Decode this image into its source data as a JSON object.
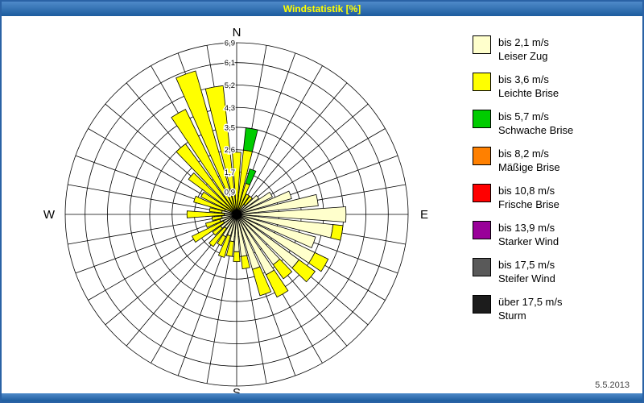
{
  "window": {
    "title": "Windstatistik [%]"
  },
  "footer": {
    "date": "5.5.2013"
  },
  "legend": {
    "items": [
      {
        "color": "#FFFFCC",
        "label_line1": "bis 2,1 m/s",
        "label_line2": "Leiser Zug"
      },
      {
        "color": "#FFFF00",
        "label_line1": "bis 3,6 m/s",
        "label_line2": "Leichte Brise"
      },
      {
        "color": "#00CC00",
        "label_line1": "bis 5,7 m/s",
        "label_line2": "Schwache Brise"
      },
      {
        "color": "#FF8000",
        "label_line1": "bis 8,2 m/s",
        "label_line2": "Mäßige Brise"
      },
      {
        "color": "#FF0000",
        "label_line1": "bis 10,8 m/s",
        "label_line2": "Frische Brise"
      },
      {
        "color": "#990099",
        "label_line1": "bis 13,9 m/s",
        "label_line2": "Starker Wind"
      },
      {
        "color": "#595959",
        "label_line1": "bis 17,5 m/s",
        "label_line2": "Steifer Wind"
      },
      {
        "color": "#1C1C1C",
        "label_line1": "über 17,5 m/s",
        "label_line2": "Sturm"
      }
    ]
  },
  "chart_data": {
    "type": "windrose-stacked-polar-bar",
    "title": "Windstatistik [%]",
    "unit": "%",
    "compass_labels": {
      "n": "N",
      "e": "E",
      "s": "S",
      "w": "W"
    },
    "ring_values": [
      0.9,
      1.7,
      2.6,
      3.5,
      4.3,
      5.2,
      6.1,
      6.9
    ],
    "ring_labels": [
      "0,9",
      "1,7",
      "2,6",
      "3,5",
      "4,3",
      "5,2",
      "6,1",
      "6,9"
    ],
    "max_value": 6.9,
    "sector_step_deg": 10,
    "note": "segment class index refers to legend.items order (0=Leiser Zug cream, 1=Leichte Brise yellow, 2=Schwache Brise green); values estimated in % from rings",
    "sectors": [
      {
        "deg": 0,
        "segments": [
          {
            "class": 1,
            "value": 2.5
          }
        ]
      },
      {
        "deg": 10,
        "segments": [
          {
            "class": 1,
            "value": 2.6
          },
          {
            "class": 2,
            "value": 0.9
          }
        ]
      },
      {
        "deg": 20,
        "segments": [
          {
            "class": 1,
            "value": 1.3
          },
          {
            "class": 2,
            "value": 0.6
          }
        ]
      },
      {
        "deg": 30,
        "segments": [
          {
            "class": 1,
            "value": 0.9
          }
        ]
      },
      {
        "deg": 40,
        "segments": [
          {
            "class": 0,
            "value": 0.5
          },
          {
            "class": 1,
            "value": 0.4
          }
        ]
      },
      {
        "deg": 50,
        "segments": [
          {
            "class": 0,
            "value": 1.1
          }
        ]
      },
      {
        "deg": 60,
        "segments": [
          {
            "class": 0,
            "value": 1.6
          }
        ]
      },
      {
        "deg": 70,
        "segments": [
          {
            "class": 0,
            "value": 2.3
          }
        ]
      },
      {
        "deg": 80,
        "segments": [
          {
            "class": 0,
            "value": 3.3
          }
        ]
      },
      {
        "deg": 90,
        "segments": [
          {
            "class": 0,
            "value": 4.4
          }
        ]
      },
      {
        "deg": 100,
        "segments": [
          {
            "class": 0,
            "value": 3.9
          },
          {
            "class": 1,
            "value": 0.4
          }
        ]
      },
      {
        "deg": 110,
        "segments": [
          {
            "class": 0,
            "value": 3.3
          }
        ]
      },
      {
        "deg": 120,
        "segments": [
          {
            "class": 0,
            "value": 3.5
          },
          {
            "class": 1,
            "value": 0.6
          }
        ]
      },
      {
        "deg": 130,
        "segments": [
          {
            "class": 0,
            "value": 3.1
          },
          {
            "class": 1,
            "value": 0.8
          }
        ]
      },
      {
        "deg": 140,
        "segments": [
          {
            "class": 0,
            "value": 2.5
          },
          {
            "class": 1,
            "value": 0.7
          }
        ]
      },
      {
        "deg": 150,
        "segments": [
          {
            "class": 0,
            "value": 2.7
          },
          {
            "class": 1,
            "value": 1.0
          }
        ]
      },
      {
        "deg": 160,
        "segments": [
          {
            "class": 0,
            "value": 2.3
          },
          {
            "class": 1,
            "value": 1.1
          }
        ]
      },
      {
        "deg": 170,
        "segments": [
          {
            "class": 0,
            "value": 1.7
          },
          {
            "class": 1,
            "value": 0.5
          }
        ]
      },
      {
        "deg": 180,
        "segments": [
          {
            "class": 0,
            "value": 1.5
          },
          {
            "class": 1,
            "value": 0.4
          }
        ]
      },
      {
        "deg": 190,
        "segments": [
          {
            "class": 0,
            "value": 1.1
          },
          {
            "class": 1,
            "value": 0.6
          }
        ]
      },
      {
        "deg": 200,
        "segments": [
          {
            "class": 0,
            "value": 0.9
          },
          {
            "class": 1,
            "value": 0.9
          }
        ]
      },
      {
        "deg": 210,
        "segments": [
          {
            "class": 0,
            "value": 1.0
          },
          {
            "class": 1,
            "value": 0.4
          }
        ]
      },
      {
        "deg": 220,
        "segments": [
          {
            "class": 0,
            "value": 0.7
          },
          {
            "class": 1,
            "value": 0.9
          }
        ]
      },
      {
        "deg": 230,
        "segments": [
          {
            "class": 0,
            "value": 0.8
          },
          {
            "class": 1,
            "value": 0.4
          }
        ]
      },
      {
        "deg": 240,
        "segments": [
          {
            "class": 0,
            "value": 0.6
          },
          {
            "class": 1,
            "value": 1.4
          }
        ]
      },
      {
        "deg": 250,
        "segments": [
          {
            "class": 0,
            "value": 0.7
          },
          {
            "class": 1,
            "value": 0.6
          }
        ]
      },
      {
        "deg": 260,
        "segments": [
          {
            "class": 0,
            "value": 0.6
          },
          {
            "class": 1,
            "value": 0.4
          }
        ]
      },
      {
        "deg": 270,
        "segments": [
          {
            "class": 0,
            "value": 0.5
          },
          {
            "class": 1,
            "value": 1.5
          }
        ]
      },
      {
        "deg": 280,
        "segments": [
          {
            "class": 0,
            "value": 0.6
          },
          {
            "class": 1,
            "value": 0.5
          }
        ]
      },
      {
        "deg": 290,
        "segments": [
          {
            "class": 0,
            "value": 0.5
          },
          {
            "class": 1,
            "value": 1.3
          }
        ]
      },
      {
        "deg": 300,
        "segments": [
          {
            "class": 1,
            "value": 1.6
          }
        ]
      },
      {
        "deg": 310,
        "segments": [
          {
            "class": 1,
            "value": 2.4
          }
        ]
      },
      {
        "deg": 320,
        "segments": [
          {
            "class": 1,
            "value": 3.5
          }
        ]
      },
      {
        "deg": 330,
        "segments": [
          {
            "class": 1,
            "value": 4.7
          }
        ]
      },
      {
        "deg": 340,
        "segments": [
          {
            "class": 1,
            "value": 6.0
          }
        ]
      },
      {
        "deg": 350,
        "segments": [
          {
            "class": 1,
            "value": 5.2
          }
        ]
      }
    ]
  }
}
